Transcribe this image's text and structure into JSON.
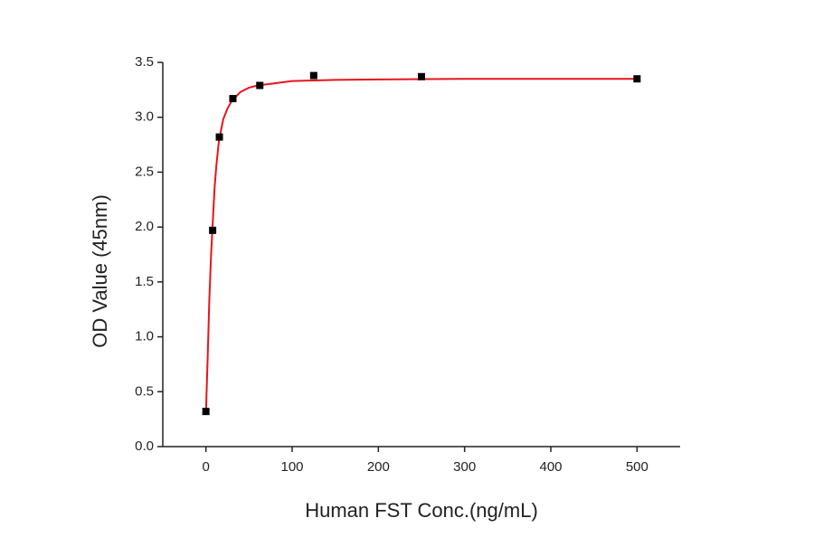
{
  "chart_data": {
    "type": "scatter",
    "x_label": "Human FST Conc.(ng/mL)",
    "y_label": "OD Value (45nm)",
    "xlim": [
      -50,
      550
    ],
    "ylim": [
      0,
      3.5
    ],
    "xticks": [
      0,
      100,
      200,
      300,
      400,
      500
    ],
    "yticks": [
      {
        "value": 0,
        "label": "0.0"
      },
      0.5,
      {
        "value": 1,
        "label": "1.0"
      },
      1.5,
      {
        "value": 2,
        "label": "2.0"
      },
      2.5,
      {
        "value": 3,
        "label": "3.0"
      },
      3.5
    ],
    "series": [
      {
        "type": "scatter",
        "color": "#000000",
        "x": [
          0,
          7.8,
          15.6,
          31.25,
          62.5,
          125,
          250,
          500
        ],
        "values": [
          0.32,
          1.97,
          2.82,
          3.17,
          3.29,
          3.38,
          3.37,
          3.35
        ]
      },
      {
        "type": "line",
        "color": "#e8141c",
        "x": [
          0,
          2,
          4,
          6,
          8,
          10,
          12,
          15,
          20,
          25,
          30,
          40,
          50,
          60,
          80,
          100,
          150,
          200,
          300,
          400,
          500
        ],
        "values": [
          0.3,
          0.8,
          1.35,
          1.75,
          2.05,
          2.35,
          2.55,
          2.78,
          2.98,
          3.08,
          3.15,
          3.23,
          3.27,
          3.29,
          3.31,
          3.33,
          3.34,
          3.345,
          3.35,
          3.35,
          3.35
        ]
      }
    ]
  }
}
